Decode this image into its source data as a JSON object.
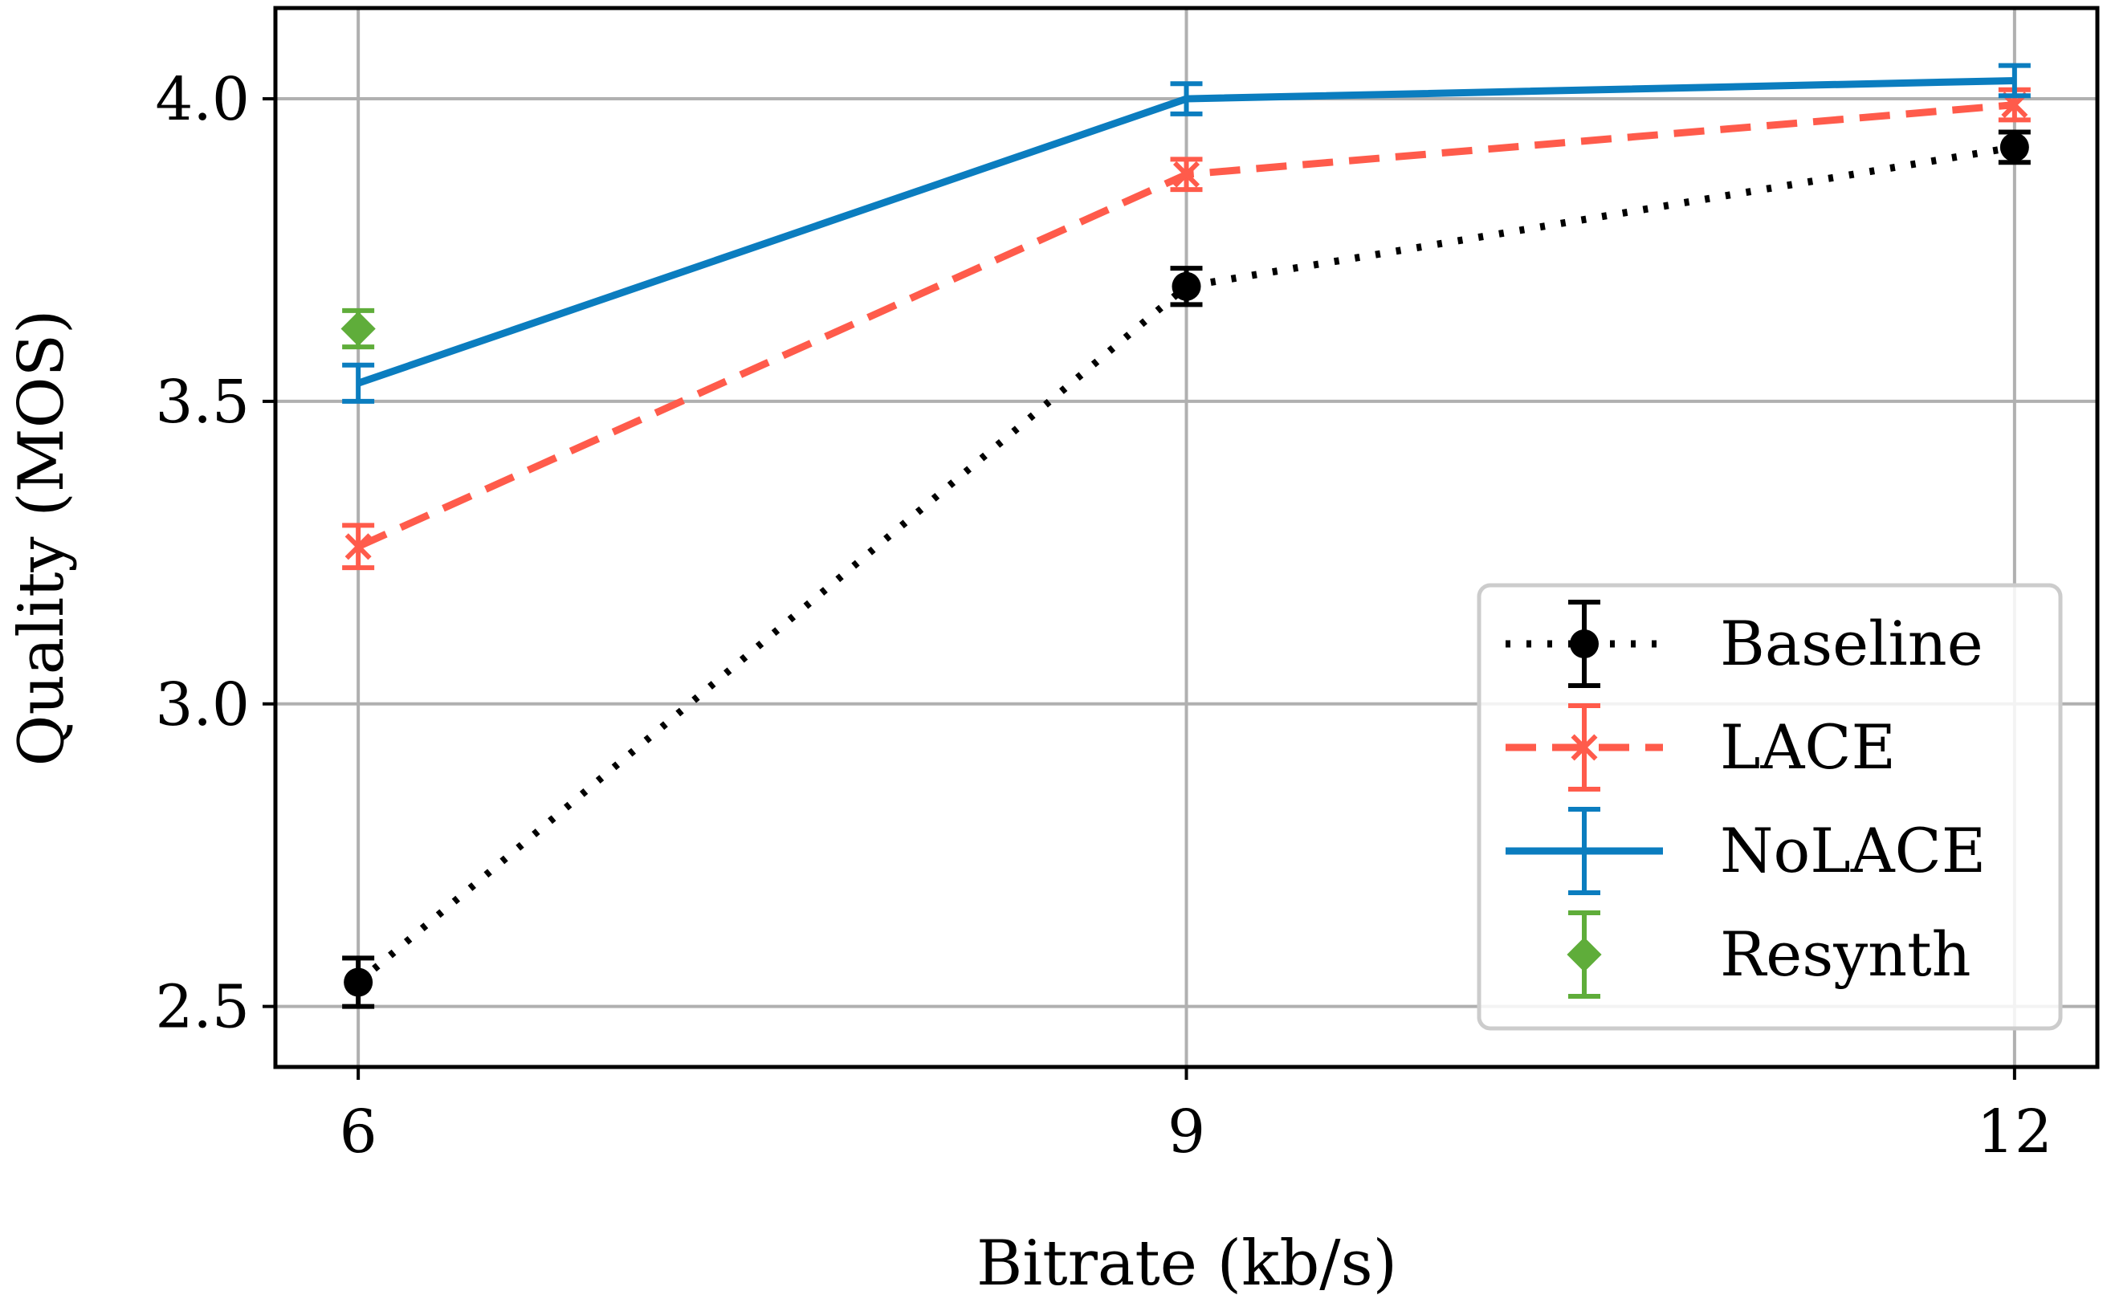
{
  "chart_data": {
    "type": "line",
    "xlabel": "Bitrate (kb/s)",
    "ylabel": "Quality (MOS)",
    "x_ticks": [
      6,
      9,
      12
    ],
    "x_tick_labels": [
      "6",
      "9",
      "12"
    ],
    "y_ticks": [
      2.5,
      3.0,
      3.5,
      4.0
    ],
    "y_tick_labels": [
      "2.5",
      "3.0",
      "3.5",
      "4.0"
    ],
    "xlim": [
      5.7,
      12.3
    ],
    "ylim": [
      2.4,
      4.15
    ],
    "grid": true,
    "legend_position": "lower right",
    "series": [
      {
        "name": "Baseline",
        "color": "#000000",
        "line_style": "dotted",
        "marker": "circle",
        "x": [
          6,
          9,
          12
        ],
        "y": [
          2.54,
          3.69,
          3.92
        ],
        "error": [
          0.04,
          0.03,
          0.025
        ]
      },
      {
        "name": "LACE",
        "color": "#ff5b4b",
        "line_style": "dashed",
        "marker": "x",
        "x": [
          6,
          9,
          12
        ],
        "y": [
          3.26,
          3.875,
          3.99
        ],
        "error": [
          0.035,
          0.025,
          0.025
        ]
      },
      {
        "name": "NoLACE",
        "color": "#0b7dbf",
        "line_style": "solid",
        "marker": "none",
        "x": [
          6,
          9,
          12
        ],
        "y": [
          3.53,
          4.0,
          4.03
        ],
        "error": [
          0.03,
          0.025,
          0.025
        ]
      },
      {
        "name": "Resynth",
        "color": "#5fad3a",
        "line_style": "none",
        "marker": "diamond",
        "x": [
          6
        ],
        "y": [
          3.62
        ],
        "error": [
          0.03
        ]
      }
    ]
  }
}
